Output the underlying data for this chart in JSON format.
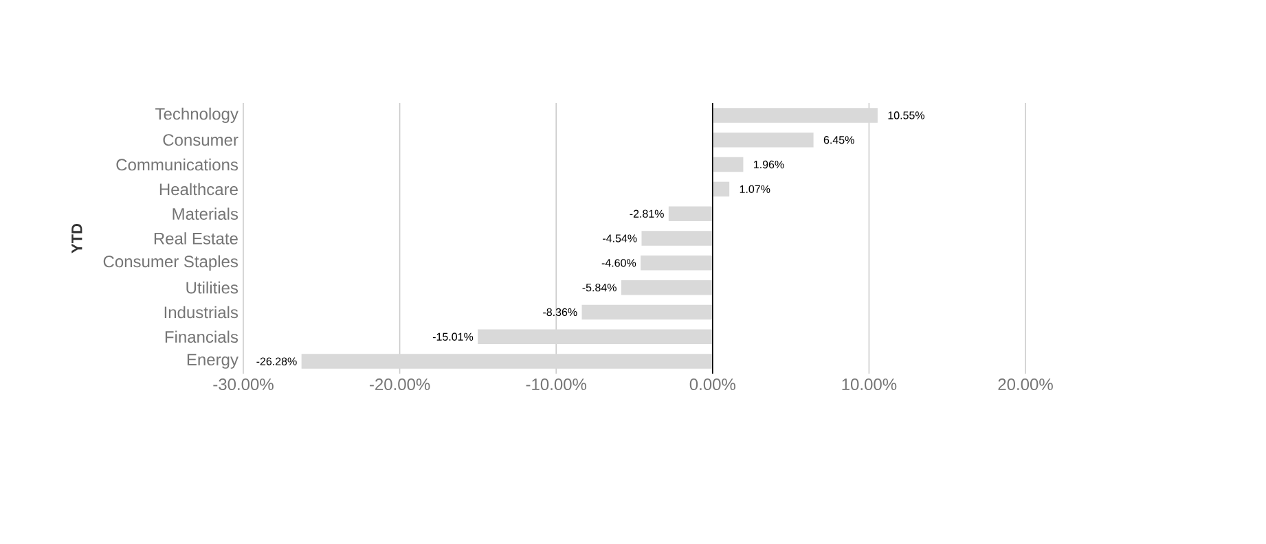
{
  "chart_data": {
    "type": "bar",
    "orientation": "horizontal",
    "ylabel": "YTD",
    "categories": [
      "Technology",
      "Consumer",
      "Communications",
      "Healthcare",
      "Materials",
      "Real Estate",
      "Consumer Staples",
      "Utilities",
      "Industrials",
      "Financials",
      "Energy"
    ],
    "values": [
      10.55,
      6.45,
      1.96,
      1.07,
      -2.81,
      -4.54,
      -4.6,
      -5.84,
      -8.36,
      -15.01,
      -26.28
    ],
    "value_labels": [
      "10.55%",
      "6.45%",
      "1.96%",
      "1.07%",
      "-2.81%",
      "-4.54%",
      "-4.60%",
      "-5.84%",
      "-8.36%",
      "-15.01%",
      "-26.28%"
    ],
    "color": "#d9d9d9",
    "xlim": [
      -30,
      20
    ],
    "xticks": [
      {
        "value": -30,
        "label": "-30.00%"
      },
      {
        "value": -20,
        "label": "-20.00%"
      },
      {
        "value": -10,
        "label": "-10.00%"
      },
      {
        "value": 0,
        "label": "0.00%"
      },
      {
        "value": 10,
        "label": "10.00%"
      },
      {
        "value": 20,
        "label": "20.00%"
      }
    ],
    "grid": "x"
  }
}
